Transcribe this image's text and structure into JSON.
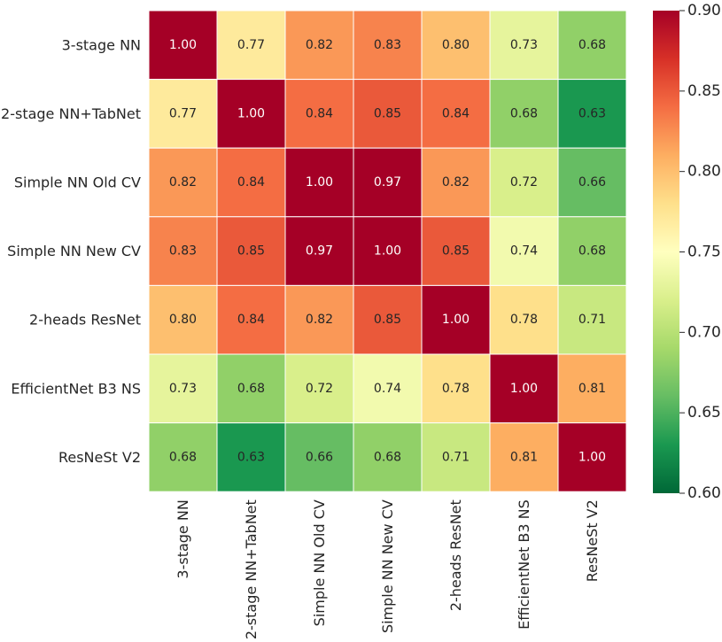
{
  "chart_data": {
    "type": "heatmap",
    "title": "",
    "xlabel": "",
    "ylabel": "",
    "labels": [
      "3-stage NN",
      "2-stage NN+TabNet",
      "Simple NN Old CV",
      "Simple NN New CV",
      "2-heads ResNet",
      "EfficientNet B3 NS",
      "ResNeSt V2"
    ],
    "values": [
      [
        1.0,
        0.77,
        0.82,
        0.83,
        0.8,
        0.73,
        0.68
      ],
      [
        0.77,
        1.0,
        0.84,
        0.85,
        0.84,
        0.68,
        0.63
      ],
      [
        0.82,
        0.84,
        1.0,
        0.97,
        0.82,
        0.72,
        0.66
      ],
      [
        0.83,
        0.85,
        0.97,
        1.0,
        0.85,
        0.74,
        0.68
      ],
      [
        0.8,
        0.84,
        0.82,
        0.85,
        1.0,
        0.78,
        0.71
      ],
      [
        0.73,
        0.68,
        0.72,
        0.74,
        0.78,
        1.0,
        0.81
      ],
      [
        0.68,
        0.63,
        0.66,
        0.68,
        0.71,
        0.81,
        1.0
      ]
    ],
    "value_format": "0.00",
    "colormap": "RdYlGn_r",
    "vmin": 0.6,
    "vmax": 0.9,
    "colorbar": {
      "ticks": [
        0.6,
        0.65,
        0.7,
        0.75,
        0.8,
        0.85,
        0.9
      ],
      "tick_labels": [
        "0.60",
        "0.65",
        "0.70",
        "0.75",
        "0.80",
        "0.85",
        "0.90"
      ]
    }
  }
}
